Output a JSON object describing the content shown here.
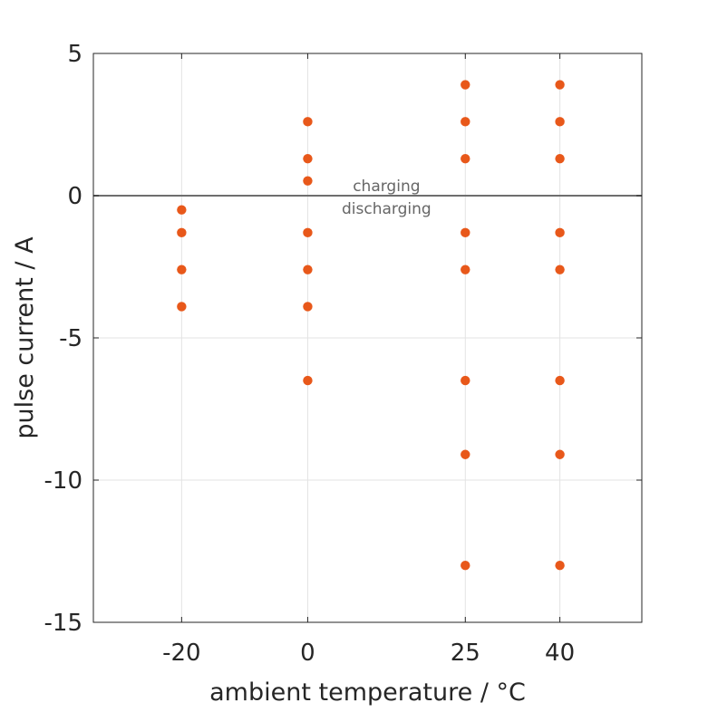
{
  "chart_data": {
    "type": "scatter",
    "xlabel": "ambient temperature / °C",
    "ylabel": "pulse current / A",
    "xlim": [
      -34,
      53
    ],
    "ylim": [
      -15,
      5
    ],
    "x_ticks": [
      -20,
      0,
      25,
      40
    ],
    "y_ticks": [
      -15,
      -10,
      -5,
      0,
      5
    ],
    "x_tick_labels": [
      "-20",
      "0",
      "25",
      "40"
    ],
    "y_tick_labels": [
      "-15",
      "-10",
      "-5",
      "0",
      "5"
    ],
    "grid": true,
    "legend": "none",
    "reference_line": {
      "y": 0,
      "color": "#6e6e6e"
    },
    "annotations": [
      {
        "text": "charging",
        "x": 12.5,
        "y": 0.35
      },
      {
        "text": "discharging",
        "x": 12.5,
        "y": -0.45
      }
    ],
    "series": [
      {
        "color": "#e8581a",
        "points": [
          {
            "x": -20,
            "y": -0.5
          },
          {
            "x": -20,
            "y": -1.3
          },
          {
            "x": -20,
            "y": -2.6
          },
          {
            "x": -20,
            "y": -3.9
          },
          {
            "x": 0,
            "y": 2.6
          },
          {
            "x": 0,
            "y": 1.3
          },
          {
            "x": 0,
            "y": 0.52
          },
          {
            "x": 0,
            "y": -1.3
          },
          {
            "x": 0,
            "y": -2.6
          },
          {
            "x": 0,
            "y": -3.9
          },
          {
            "x": 0,
            "y": -6.5
          },
          {
            "x": 25,
            "y": 3.9
          },
          {
            "x": 25,
            "y": 2.6
          },
          {
            "x": 25,
            "y": 1.3
          },
          {
            "x": 25,
            "y": -1.3
          },
          {
            "x": 25,
            "y": -2.6
          },
          {
            "x": 25,
            "y": -6.5
          },
          {
            "x": 25,
            "y": -9.1
          },
          {
            "x": 25,
            "y": -13.0
          },
          {
            "x": 40,
            "y": 3.9
          },
          {
            "x": 40,
            "y": 2.6
          },
          {
            "x": 40,
            "y": 1.3
          },
          {
            "x": 40,
            "y": -1.3
          },
          {
            "x": 40,
            "y": -2.6
          },
          {
            "x": 40,
            "y": -6.5
          },
          {
            "x": 40,
            "y": -9.1
          },
          {
            "x": 40,
            "y": -13.0
          }
        ]
      }
    ]
  }
}
